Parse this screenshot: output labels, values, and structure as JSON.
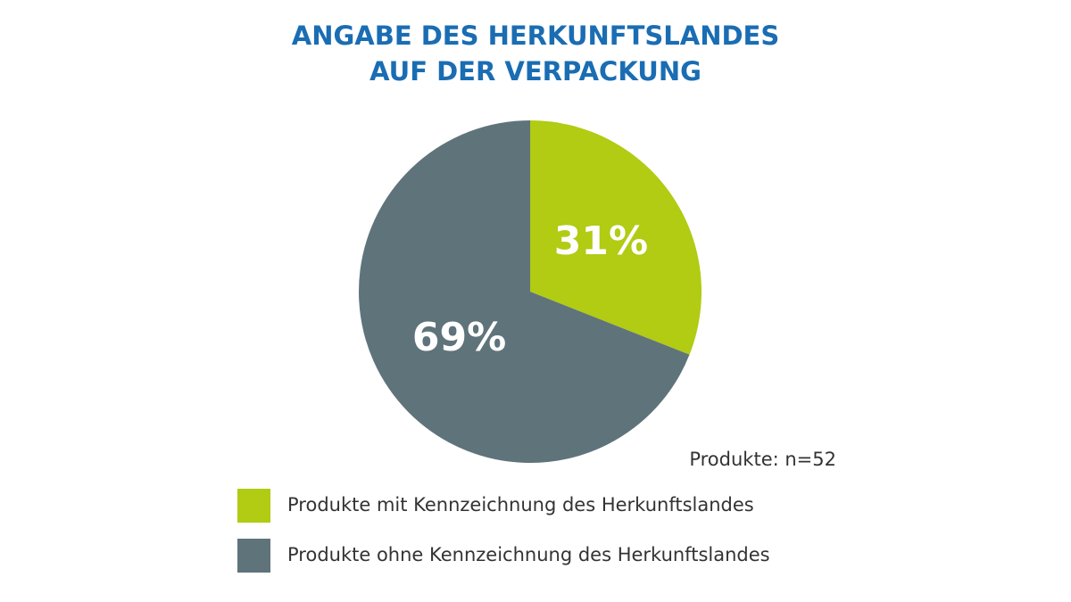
{
  "chart_data": {
    "type": "pie",
    "title": [
      "ANGABE DES HERKUNFTSLANDES",
      "AUF DER VERPACKUNG"
    ],
    "categories": [
      "Produkte mit Kennzeichnung des Herkunftslandes",
      "Produkte ohne Kennzeichnung des Herkunftslandes"
    ],
    "values": [
      31,
      69
    ],
    "value_labels": [
      "31%",
      "69%"
    ],
    "colors": [
      "#b2cb13",
      "#5f737b"
    ],
    "annotation": "Produkte: n=52"
  }
}
